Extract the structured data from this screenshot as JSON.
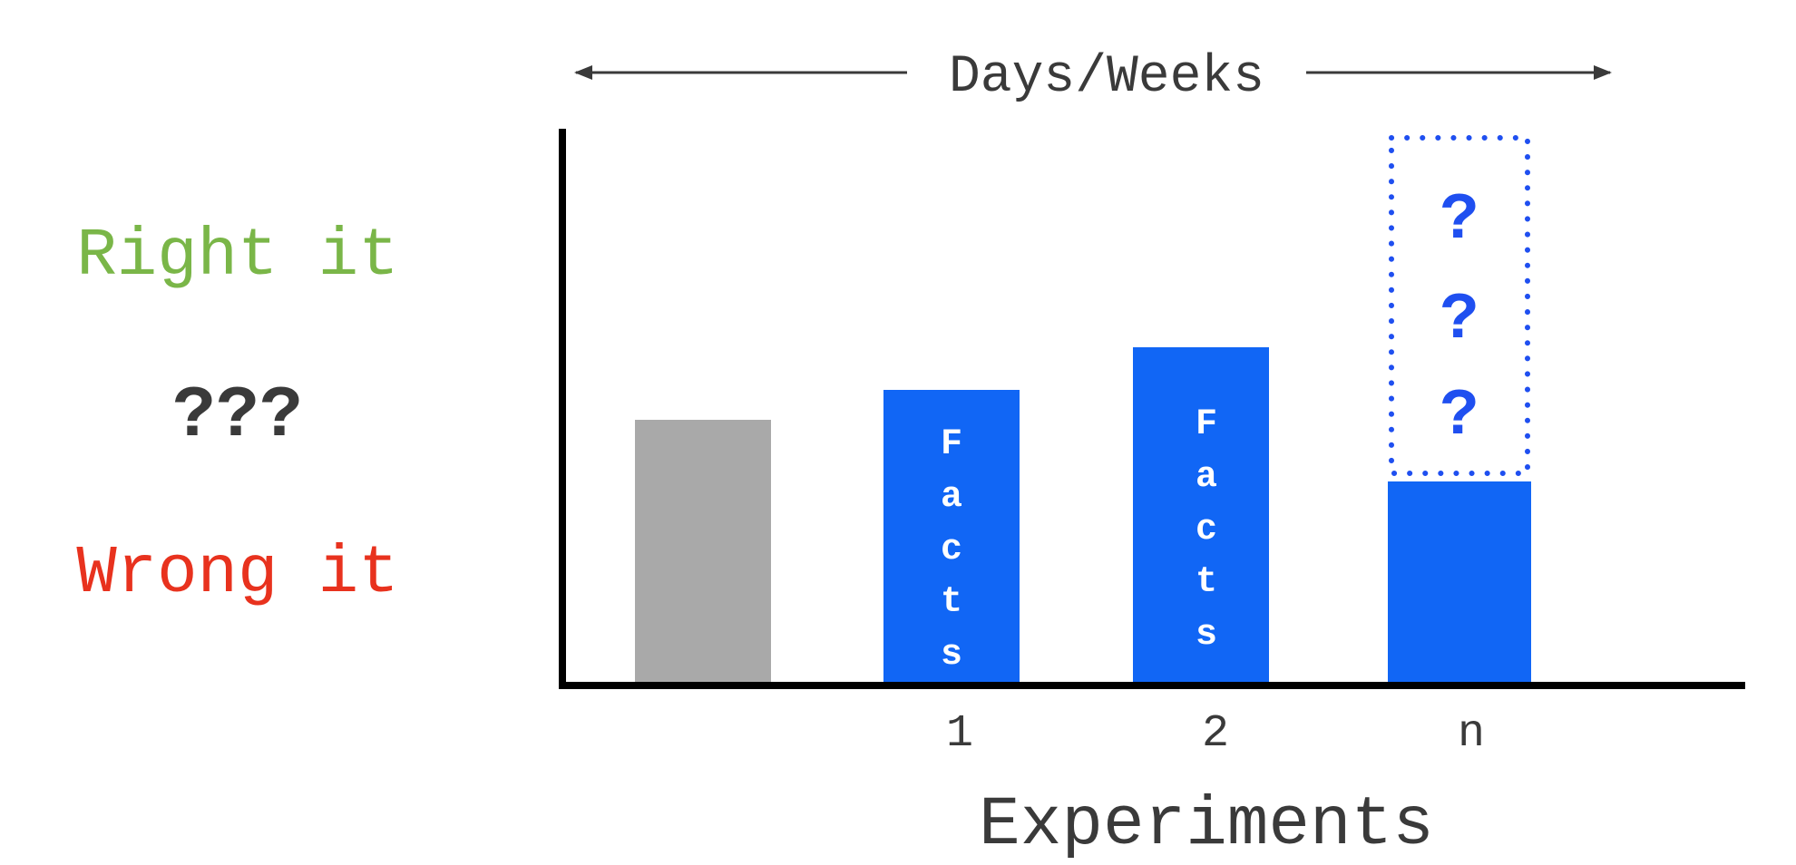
{
  "top_label": "Days/Weeks",
  "x_axis_label": "Experiments",
  "left_labels": {
    "right": "Right it",
    "unknown": "???",
    "wrong": "Wrong it"
  },
  "colors": {
    "right": "#7ab648",
    "wrong": "#e8321e",
    "bar_blue": "#1166f5",
    "bar_gray": "#a9a9a9",
    "dotted_blue": "#1f4ff0",
    "text_dark": "#3a3a3a",
    "axis": "#000000"
  },
  "bars": [
    {
      "label": "",
      "text": "",
      "color": "gray"
    },
    {
      "label": "1",
      "text": "Facts",
      "color": "blue"
    },
    {
      "label": "2",
      "text": "Facts",
      "color": "blue"
    },
    {
      "label": "n",
      "text": "",
      "color": "blue"
    }
  ],
  "unknown_box": {
    "marks": [
      "?",
      "?",
      "?"
    ]
  }
}
